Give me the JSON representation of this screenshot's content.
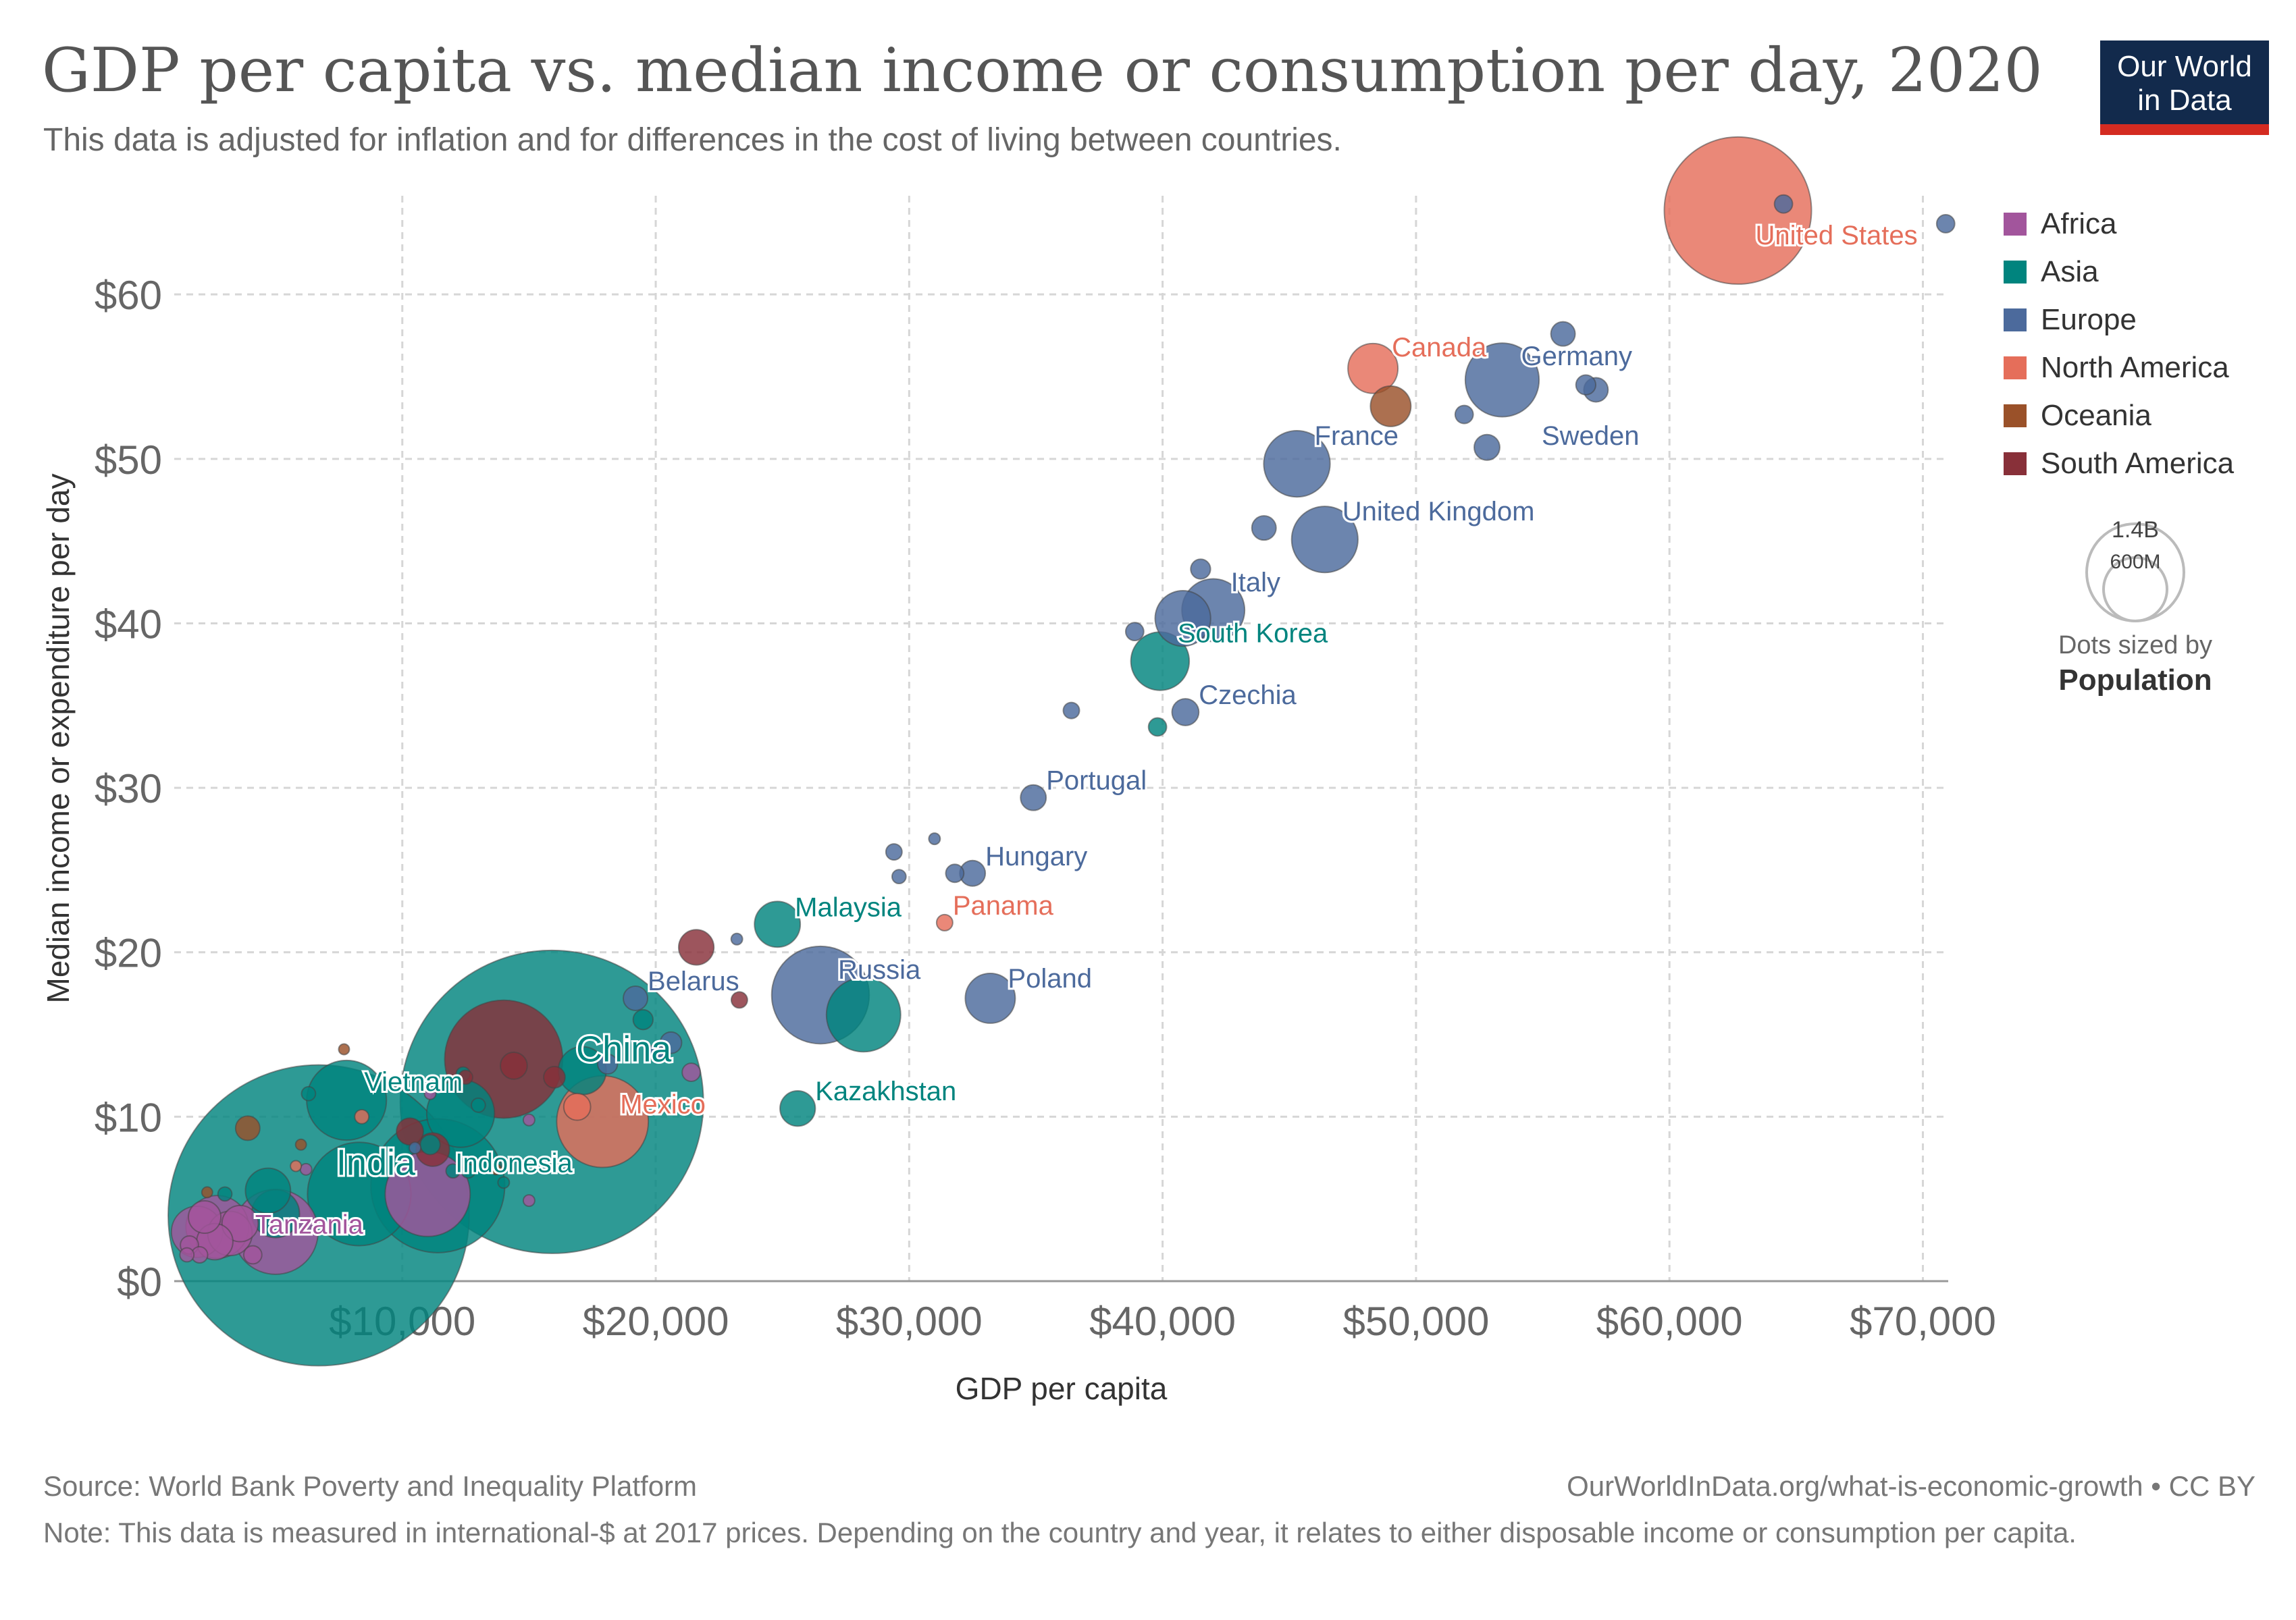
{
  "title": "GDP per capita vs. median income or consumption per day, 2020",
  "subtitle": "This data is adjusted for inflation and for differences in the cost of living between countries.",
  "logo": {
    "line1": "Our World",
    "line2": "in Data"
  },
  "footer": {
    "source": "Source: World Bank Poverty and Inequality Platform",
    "url": "OurWorldInData.org/what-is-economic-growth • CC BY",
    "note": "Note: This data is measured in international-$ at 2017 prices. Depending on the country and year, it relates to either disposable income or consumption per capita."
  },
  "chart_data": {
    "type": "scatter",
    "xlabel": "GDP per capita",
    "ylabel": "Median income or expenditure per day",
    "x_ticks": [
      {
        "value": 10000,
        "label": "$10,000"
      },
      {
        "value": 20000,
        "label": "$20,000"
      },
      {
        "value": 30000,
        "label": "$30,000"
      },
      {
        "value": 40000,
        "label": "$40,000"
      },
      {
        "value": 50000,
        "label": "$50,000"
      },
      {
        "value": 60000,
        "label": "$60,000"
      },
      {
        "value": 70000,
        "label": "$70,000"
      }
    ],
    "y_ticks": [
      {
        "value": 0,
        "label": "$0"
      },
      {
        "value": 10,
        "label": "$10"
      },
      {
        "value": 20,
        "label": "$20"
      },
      {
        "value": 30,
        "label": "$30"
      },
      {
        "value": 40,
        "label": "$40"
      },
      {
        "value": 50,
        "label": "$50"
      },
      {
        "value": 60,
        "label": "$60"
      }
    ],
    "xlim": [
      1000,
      71000
    ],
    "ylim": [
      0,
      66
    ],
    "grid": true,
    "legend_position": "right",
    "regions": [
      {
        "name": "Africa",
        "color": "#a2559c"
      },
      {
        "name": "Asia",
        "color": "#00847e"
      },
      {
        "name": "Europe",
        "color": "#4c6a9c"
      },
      {
        "name": "North America",
        "color": "#e56e5a"
      },
      {
        "name": "Oceania",
        "color": "#9a5129"
      },
      {
        "name": "South America",
        "color": "#883039"
      }
    ],
    "size_legend": {
      "values": [
        "1.4B",
        "600M"
      ],
      "caption": "Dots sized by",
      "variable": "Population"
    },
    "points": [
      {
        "label": "United States",
        "region": "North America",
        "x": 62700,
        "y": 65.1,
        "pop": 330
      },
      {
        "label": "Canada",
        "region": "North America",
        "x": 48300,
        "y": 55.5,
        "pop": 38
      },
      {
        "label": "Germany",
        "region": "Europe",
        "x": 53400,
        "y": 54.8,
        "pop": 83
      },
      {
        "label": "France",
        "region": "Europe",
        "x": 45300,
        "y": 49.7,
        "pop": 67
      },
      {
        "label": "Sweden",
        "region": "Europe",
        "x": 52800,
        "y": 50.7,
        "pop": 10
      },
      {
        "label": "United Kingdom",
        "region": "Europe",
        "x": 46400,
        "y": 45.1,
        "pop": 67
      },
      {
        "label": "Italy",
        "region": "Europe",
        "x": 42000,
        "y": 40.8,
        "pop": 60
      },
      {
        "label": "South Korea",
        "region": "Asia",
        "x": 39900,
        "y": 37.7,
        "pop": 52
      },
      {
        "label": "Czechia",
        "region": "Europe",
        "x": 40900,
        "y": 34.6,
        "pop": 11
      },
      {
        "label": "Portugal",
        "region": "Europe",
        "x": 34900,
        "y": 29.4,
        "pop": 10
      },
      {
        "label": "Hungary",
        "region": "Europe",
        "x": 32500,
        "y": 24.8,
        "pop": 10
      },
      {
        "label": "Panama",
        "region": "North America",
        "x": 31400,
        "y": 21.8,
        "pop": 4
      },
      {
        "label": "Malaysia",
        "region": "Asia",
        "x": 24800,
        "y": 21.7,
        "pop": 32
      },
      {
        "label": "Russia",
        "region": "Europe",
        "x": 26500,
        "y": 17.4,
        "pop": 145
      },
      {
        "label": "Poland",
        "region": "Europe",
        "x": 33200,
        "y": 17.2,
        "pop": 38
      },
      {
        "label": "Belarus",
        "region": "Europe",
        "x": 19200,
        "y": 17.2,
        "pop": 9
      },
      {
        "label": "Kazakhstan",
        "region": "Asia",
        "x": 25600,
        "y": 10.5,
        "pop": 19
      },
      {
        "label": "China",
        "region": "Asia",
        "x": 15900,
        "y": 10.9,
        "pop": 1400
      },
      {
        "label": "Mexico",
        "region": "North America",
        "x": 17900,
        "y": 9.7,
        "pop": 128
      },
      {
        "label": "Vietnam",
        "region": "Asia",
        "x": 7800,
        "y": 11.0,
        "pop": 97
      },
      {
        "label": "Indonesia",
        "region": "Asia",
        "x": 11400,
        "y": 5.8,
        "pop": 273
      },
      {
        "label": "India",
        "region": "Asia",
        "x": 6700,
        "y": 4.0,
        "pop": 1380
      },
      {
        "label": "Tanzania",
        "region": "Africa",
        "x": 2700,
        "y": 3.3,
        "pop": 60
      },
      {
        "label": "",
        "region": "Europe",
        "x": 64500,
        "y": 65.5,
        "pop": 5
      },
      {
        "label": "",
        "region": "Europe",
        "x": 70900,
        "y": 64.3,
        "pop": 5
      },
      {
        "label": "",
        "region": "Europe",
        "x": 55800,
        "y": 57.6,
        "pop": 9
      },
      {
        "label": "",
        "region": "Europe",
        "x": 56700,
        "y": 54.5,
        "pop": 6
      },
      {
        "label": "",
        "region": "Europe",
        "x": 57100,
        "y": 54.2,
        "pop": 9
      },
      {
        "label": "",
        "region": "Oceania",
        "x": 49000,
        "y": 53.2,
        "pop": 25
      },
      {
        "label": "",
        "region": "Europe",
        "x": 51900,
        "y": 52.7,
        "pop": 5
      },
      {
        "label": "",
        "region": "Europe",
        "x": 44000,
        "y": 45.8,
        "pop": 9
      },
      {
        "label": "",
        "region": "Europe",
        "x": 41500,
        "y": 43.3,
        "pop": 6
      },
      {
        "label": "",
        "region": "Europe",
        "x": 40800,
        "y": 40.3,
        "pop": 47
      },
      {
        "label": "",
        "region": "Europe",
        "x": 38900,
        "y": 39.5,
        "pop": 5
      },
      {
        "label": "",
        "region": "Europe",
        "x": 36400,
        "y": 34.7,
        "pop": 4
      },
      {
        "label": "",
        "region": "Asia",
        "x": 39800,
        "y": 33.7,
        "pop": 5
      },
      {
        "label": "",
        "region": "Europe",
        "x": 31000,
        "y": 26.9,
        "pop": 2
      },
      {
        "label": "",
        "region": "Europe",
        "x": 29400,
        "y": 26.1,
        "pop": 4
      },
      {
        "label": "",
        "region": "Europe",
        "x": 31800,
        "y": 24.8,
        "pop": 5
      },
      {
        "label": "",
        "region": "Europe",
        "x": 29600,
        "y": 24.6,
        "pop": 3
      },
      {
        "label": "",
        "region": "Europe",
        "x": 23200,
        "y": 20.8,
        "pop": 2
      },
      {
        "label": "",
        "region": "South America",
        "x": 21600,
        "y": 20.3,
        "pop": 19
      },
      {
        "label": "",
        "region": "South America",
        "x": 23300,
        "y": 17.1,
        "pop": 4
      },
      {
        "label": "",
        "region": "Asia",
        "x": 28200,
        "y": 16.2,
        "pop": 84
      },
      {
        "label": "",
        "region": "Asia",
        "x": 19500,
        "y": 15.9,
        "pop": 6
      },
      {
        "label": "",
        "region": "Europe",
        "x": 20600,
        "y": 14.5,
        "pop": 7
      },
      {
        "label": "",
        "region": "South America",
        "x": 14000,
        "y": 13.5,
        "pop": 212
      },
      {
        "label": "",
        "region": "Europe",
        "x": 20000,
        "y": 13.9,
        "pop": 4
      },
      {
        "label": "",
        "region": "Africa",
        "x": 21400,
        "y": 12.7,
        "pop": 5
      },
      {
        "label": "",
        "region": "Europe",
        "x": 18100,
        "y": 13.2,
        "pop": 6
      },
      {
        "label": "",
        "region": "Asia",
        "x": 17100,
        "y": 12.8,
        "pop": 35
      },
      {
        "label": "",
        "region": "South America",
        "x": 14400,
        "y": 13.1,
        "pop": 11
      },
      {
        "label": "",
        "region": "Oceania",
        "x": 7700,
        "y": 14.1,
        "pop": 1
      },
      {
        "label": "",
        "region": "Asia",
        "x": 6300,
        "y": 11.4,
        "pop": 3
      },
      {
        "label": "",
        "region": "Africa",
        "x": 11100,
        "y": 11.4,
        "pop": 2
      },
      {
        "label": "",
        "region": "Asia",
        "x": 12400,
        "y": 12.6,
        "pop": 3
      },
      {
        "label": "",
        "region": "South America",
        "x": 12500,
        "y": 12.4,
        "pop": 3
      },
      {
        "label": "",
        "region": "South America",
        "x": 16000,
        "y": 12.4,
        "pop": 7
      },
      {
        "label": "",
        "region": "Asia",
        "x": 12300,
        "y": 10.2,
        "pop": 70
      },
      {
        "label": "",
        "region": "Asia",
        "x": 13000,
        "y": 10.7,
        "pop": 3
      },
      {
        "label": "",
        "region": "North America",
        "x": 16900,
        "y": 10.6,
        "pop": 11
      },
      {
        "label": "",
        "region": "Oceania",
        "x": 3900,
        "y": 9.3,
        "pop": 9
      },
      {
        "label": "",
        "region": "North America",
        "x": 8400,
        "y": 10.0,
        "pop": 3
      },
      {
        "label": "",
        "region": "Oceania",
        "x": 6000,
        "y": 8.3,
        "pop": 1
      },
      {
        "label": "",
        "region": "South America",
        "x": 10300,
        "y": 9.1,
        "pop": 11
      },
      {
        "label": "",
        "region": "Europe",
        "x": 10500,
        "y": 8.1,
        "pop": 2
      },
      {
        "label": "",
        "region": "Asia",
        "x": 11100,
        "y": 8.3,
        "pop": 6
      },
      {
        "label": "",
        "region": "Africa",
        "x": 15000,
        "y": 9.8,
        "pop": 2
      },
      {
        "label": "",
        "region": "South America",
        "x": 11200,
        "y": 8.0,
        "pop": 17
      },
      {
        "label": "",
        "region": "Asia",
        "x": 8300,
        "y": 5.3,
        "pop": 163
      },
      {
        "label": "",
        "region": "Asia",
        "x": 4700,
        "y": 5.5,
        "pop": 31
      },
      {
        "label": "",
        "region": "Asia",
        "x": 3000,
        "y": 5.3,
        "pop": 3
      },
      {
        "label": "",
        "region": "Oceania",
        "x": 2300,
        "y": 5.4,
        "pop": 1
      },
      {
        "label": "",
        "region": "North America",
        "x": 5800,
        "y": 7.0,
        "pop": 1
      },
      {
        "label": "",
        "region": "Africa",
        "x": 6200,
        "y": 6.8,
        "pop": 2
      },
      {
        "label": "",
        "region": "Oceania",
        "x": 13700,
        "y": 6.8,
        "pop": 1
      },
      {
        "label": "",
        "region": "Asia",
        "x": 12000,
        "y": 6.7,
        "pop": 3
      },
      {
        "label": "",
        "region": "Asia",
        "x": 12600,
        "y": 6.7,
        "pop": 3
      },
      {
        "label": "",
        "region": "Asia",
        "x": 14000,
        "y": 6.0,
        "pop": 2
      },
      {
        "label": "",
        "region": "Africa",
        "x": 11000,
        "y": 5.3,
        "pop": 110
      },
      {
        "label": "",
        "region": "Africa",
        "x": 15000,
        "y": 4.9,
        "pop": 2
      },
      {
        "label": "",
        "region": "Asia",
        "x": 5000,
        "y": 4.1,
        "pop": 35
      },
      {
        "label": "",
        "region": "Africa",
        "x": 5000,
        "y": 3.0,
        "pop": 110
      },
      {
        "label": "",
        "region": "Africa",
        "x": 3600,
        "y": 3.5,
        "pop": 20
      },
      {
        "label": "",
        "region": "Africa",
        "x": 2200,
        "y": 3.9,
        "pop": 16
      },
      {
        "label": "",
        "region": "Africa",
        "x": 3200,
        "y": 2.9,
        "pop": 30
      },
      {
        "label": "",
        "region": "Africa",
        "x": 1900,
        "y": 3.0,
        "pop": 40
      },
      {
        "label": "",
        "region": "Africa",
        "x": 2600,
        "y": 2.4,
        "pop": 20
      },
      {
        "label": "",
        "region": "Africa",
        "x": 1600,
        "y": 2.2,
        "pop": 5
      },
      {
        "label": "",
        "region": "Africa",
        "x": 1500,
        "y": 1.6,
        "pop": 3
      },
      {
        "label": "",
        "region": "Africa",
        "x": 2000,
        "y": 1.6,
        "pop": 4
      },
      {
        "label": "",
        "region": "Africa",
        "x": 4100,
        "y": 1.6,
        "pop": 5
      }
    ]
  }
}
